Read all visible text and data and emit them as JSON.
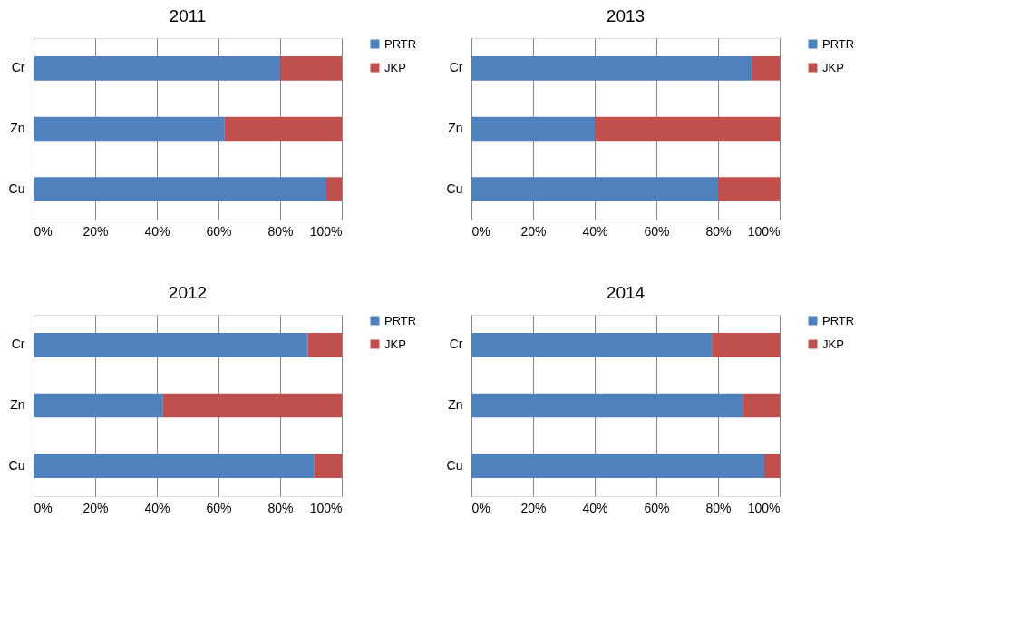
{
  "chart_data": [
    {
      "type": "bar",
      "title": "2011",
      "orientation": "horizontal",
      "stacked": true,
      "categories": [
        "Cr",
        "Zn",
        "Cu"
      ],
      "xlim": [
        0,
        100
      ],
      "xticks": [
        {
          "value": 0,
          "label": "0%"
        },
        {
          "value": 20,
          "label": "20%"
        },
        {
          "value": 40,
          "label": "40%"
        },
        {
          "value": 60,
          "label": "60%"
        },
        {
          "value": 80,
          "label": "80%"
        },
        {
          "value": 100,
          "label": "100%"
        }
      ],
      "grid": "x",
      "legend": "right",
      "series": [
        {
          "name": "PRTR",
          "color": "#4f81bd",
          "values": [
            80,
            62,
            95
          ]
        },
        {
          "name": "JKP",
          "color": "#c0504d",
          "values": [
            20,
            38,
            5
          ]
        }
      ]
    },
    {
      "type": "bar",
      "title": "2013",
      "orientation": "horizontal",
      "stacked": true,
      "categories": [
        "Cr",
        "Zn",
        "Cu"
      ],
      "xlim": [
        0,
        100
      ],
      "xticks": [
        {
          "value": 0,
          "label": "0%"
        },
        {
          "value": 20,
          "label": "20%"
        },
        {
          "value": 40,
          "label": "40%"
        },
        {
          "value": 60,
          "label": "60%"
        },
        {
          "value": 80,
          "label": "80%"
        },
        {
          "value": 100,
          "label": "100%"
        }
      ],
      "grid": "x",
      "legend": "right",
      "series": [
        {
          "name": "PRTR",
          "color": "#4f81bd",
          "values": [
            91,
            40,
            80
          ]
        },
        {
          "name": "JKP",
          "color": "#c0504d",
          "values": [
            9,
            60,
            20
          ]
        }
      ]
    },
    {
      "type": "bar",
      "title": "2012",
      "orientation": "horizontal",
      "stacked": true,
      "categories": [
        "Cr",
        "Zn",
        "Cu"
      ],
      "xlim": [
        0,
        100
      ],
      "xticks": [
        {
          "value": 0,
          "label": "0%"
        },
        {
          "value": 20,
          "label": "20%"
        },
        {
          "value": 40,
          "label": "40%"
        },
        {
          "value": 60,
          "label": "60%"
        },
        {
          "value": 80,
          "label": "80%"
        },
        {
          "value": 100,
          "label": "100%"
        }
      ],
      "grid": "x",
      "legend": "right",
      "series": [
        {
          "name": "PRTR",
          "color": "#4f81bd",
          "values": [
            89,
            42,
            91
          ]
        },
        {
          "name": "JKP",
          "color": "#c0504d",
          "values": [
            11,
            58,
            9
          ]
        }
      ]
    },
    {
      "type": "bar",
      "title": "2014",
      "orientation": "horizontal",
      "stacked": true,
      "categories": [
        "Cr",
        "Zn",
        "Cu"
      ],
      "xlim": [
        0,
        100
      ],
      "xticks": [
        {
          "value": 0,
          "label": "0%"
        },
        {
          "value": 20,
          "label": "20%"
        },
        {
          "value": 40,
          "label": "40%"
        },
        {
          "value": 60,
          "label": "60%"
        },
        {
          "value": 80,
          "label": "80%"
        },
        {
          "value": 100,
          "label": "100%"
        }
      ],
      "grid": "x",
      "legend": "right",
      "series": [
        {
          "name": "PRTR",
          "color": "#4f81bd",
          "values": [
            78,
            88,
            95
          ]
        },
        {
          "name": "JKP",
          "color": "#c0504d",
          "values": [
            22,
            12,
            5
          ]
        }
      ]
    }
  ]
}
